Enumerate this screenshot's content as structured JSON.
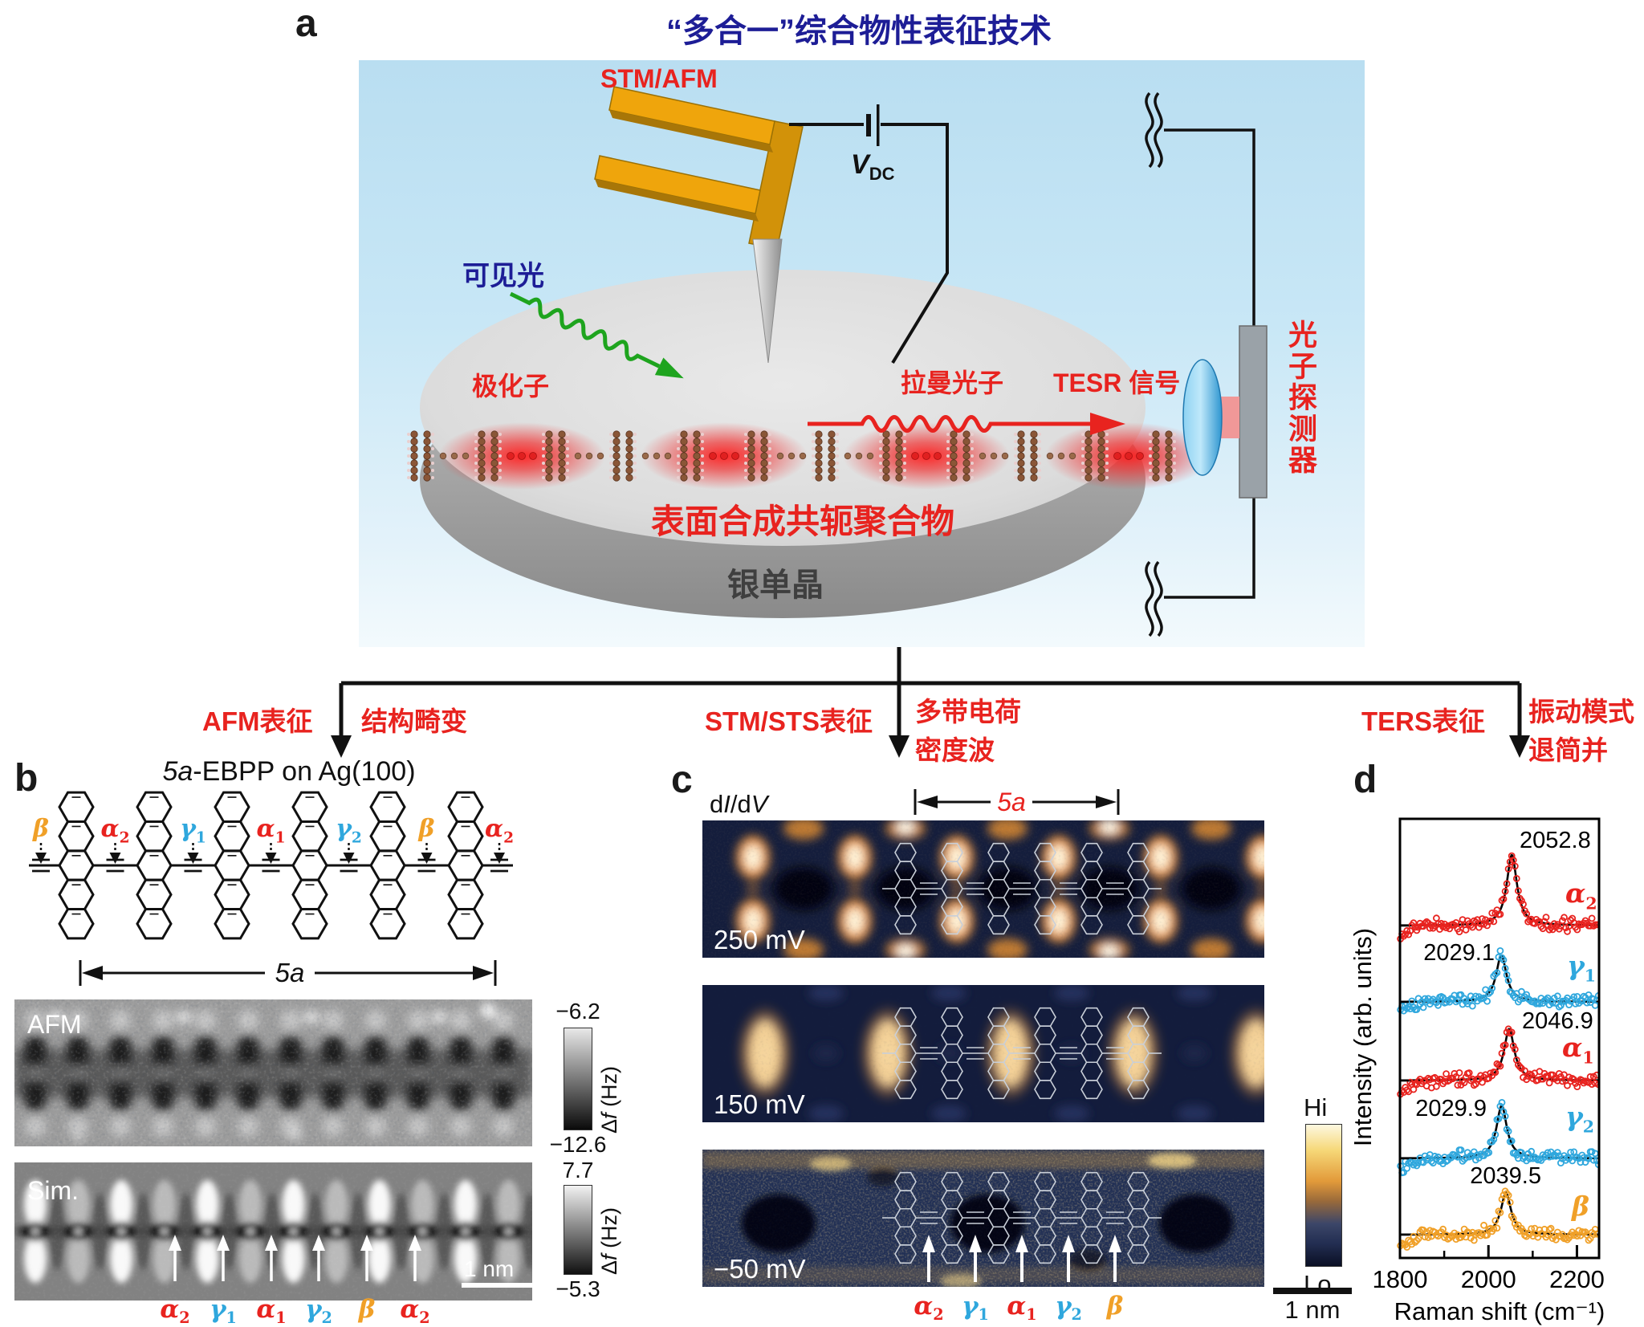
{
  "colors": {
    "red": "#e8231f",
    "cyan": "#2fa7dd",
    "orange": "#f0a028",
    "green": "#1ea41e",
    "navy_title": "#1d1d96",
    "stm_bg": "#141d3c",
    "gold": "#d2a048"
  },
  "panel_a": {
    "label": "a",
    "title": "“多合一”综合物性表征技术",
    "stm_afm": "STM/AFM",
    "vdc_main": "V",
    "vdc_sub": "DC",
    "visible_light": "可见光",
    "polaron": "极化子",
    "raman_photon": "拉曼光子",
    "tesr_signal": "TESR 信号",
    "photon_detector": "光子探测器",
    "polymer": "表面合成共轭聚合物",
    "silver": "银单晶"
  },
  "branches": [
    {
      "method": "AFM表征",
      "result_lines": [
        "结构畸变"
      ]
    },
    {
      "method": "STM/STS表征",
      "result_lines": [
        "多带电荷",
        "密度波"
      ]
    },
    {
      "method": "TERS表征",
      "result_lines": [
        "振动模式",
        "退简并"
      ]
    }
  ],
  "panel_b": {
    "label": "b",
    "title_italic": "5a",
    "title_rest": "-EBPP on Ag(100)",
    "span_label": "5a",
    "bond_labels": [
      {
        "g": "β",
        "sub": "",
        "c": "orange"
      },
      {
        "g": "α",
        "sub": "2",
        "c": "red"
      },
      {
        "g": "γ",
        "sub": "1",
        "c": "cyan"
      },
      {
        "g": "α",
        "sub": "1",
        "c": "red"
      },
      {
        "g": "γ",
        "sub": "2",
        "c": "cyan"
      },
      {
        "g": "β",
        "sub": "",
        "c": "orange"
      },
      {
        "g": "α",
        "sub": "2",
        "c": "red"
      }
    ],
    "afm": {
      "name": "AFM",
      "cb_top": "−6.2",
      "cb_bot": "−12.6",
      "cb_unit_d": "Δ",
      "cb_unit_f": "f",
      "cb_unit_rest": " (Hz)"
    },
    "sim": {
      "name": "Sim.",
      "cb_top": "7.7",
      "cb_bot": "−5.3",
      "cb_unit_d": "Δ",
      "cb_unit_f": "f",
      "cb_unit_rest": " (Hz)",
      "scalebar": "1 nm"
    },
    "mode_labels": [
      {
        "g": "α",
        "sub": "2",
        "c": "red"
      },
      {
        "g": "γ",
        "sub": "1",
        "c": "cyan"
      },
      {
        "g": "α",
        "sub": "1",
        "c": "red"
      },
      {
        "g": "γ",
        "sub": "2",
        "c": "cyan"
      },
      {
        "g": "β",
        "sub": "",
        "c": "orange"
      },
      {
        "g": "α",
        "sub": "2",
        "c": "red"
      }
    ]
  },
  "panel_c": {
    "label": "c",
    "map_label_parts": [
      {
        "t": "d",
        "i": 0
      },
      {
        "t": "I",
        "i": 1
      },
      {
        "t": "/d",
        "i": 0
      },
      {
        "t": "V",
        "i": 1
      }
    ],
    "span_label": "5a",
    "biases": [
      "250 mV",
      "150 mV",
      "−50 mV"
    ],
    "colorbar_hi": "Hi",
    "colorbar_lo": "Lo",
    "scalebar": "1 nm",
    "mode_labels": [
      {
        "g": "α",
        "sub": "2",
        "c": "red"
      },
      {
        "g": "γ",
        "sub": "1",
        "c": "cyan"
      },
      {
        "g": "α",
        "sub": "1",
        "c": "red"
      },
      {
        "g": "γ",
        "sub": "2",
        "c": "cyan"
      },
      {
        "g": "β",
        "sub": "",
        "c": "orange"
      }
    ]
  },
  "panel_d": {
    "label": "d"
  },
  "chart_data": {
    "type": "scatter",
    "title": "",
    "xlabel": "Raman shift (cm⁻¹)",
    "ylabel": "Intensity (arb. units)",
    "xlim": [
      1800,
      2250
    ],
    "x_ticks": [
      1800,
      2000,
      2200
    ],
    "x_minor_ticks": [
      1900,
      2100
    ],
    "grid": false,
    "legend_position": "right of each curve",
    "note": "five vertically offset TERS spectra, open-circle data with black Lorentzian fits",
    "series": [
      {
        "name": "α2",
        "glyph": {
          "g": "α",
          "sub": "2",
          "c": "red"
        },
        "center": 2052.8,
        "peak_label": "2052.8",
        "rel_amplitude": 1.0
      },
      {
        "name": "γ1",
        "glyph": {
          "g": "γ",
          "sub": "1",
          "c": "cyan"
        },
        "center": 2029.1,
        "peak_label": "2029.1",
        "rel_amplitude": 0.66
      },
      {
        "name": "α1",
        "glyph": {
          "g": "α",
          "sub": "1",
          "c": "red"
        },
        "center": 2046.9,
        "peak_label": "2046.9",
        "rel_amplitude": 0.73
      },
      {
        "name": "γ2",
        "glyph": {
          "g": "γ",
          "sub": "2",
          "c": "cyan"
        },
        "center": 2029.9,
        "peak_label": "2029.9",
        "rel_amplitude": 0.75
      },
      {
        "name": "β",
        "glyph": {
          "g": "β",
          "sub": "",
          "c": "orange"
        },
        "center": 2039.5,
        "peak_label": "2039.5",
        "rel_amplitude": 0.59
      }
    ]
  }
}
